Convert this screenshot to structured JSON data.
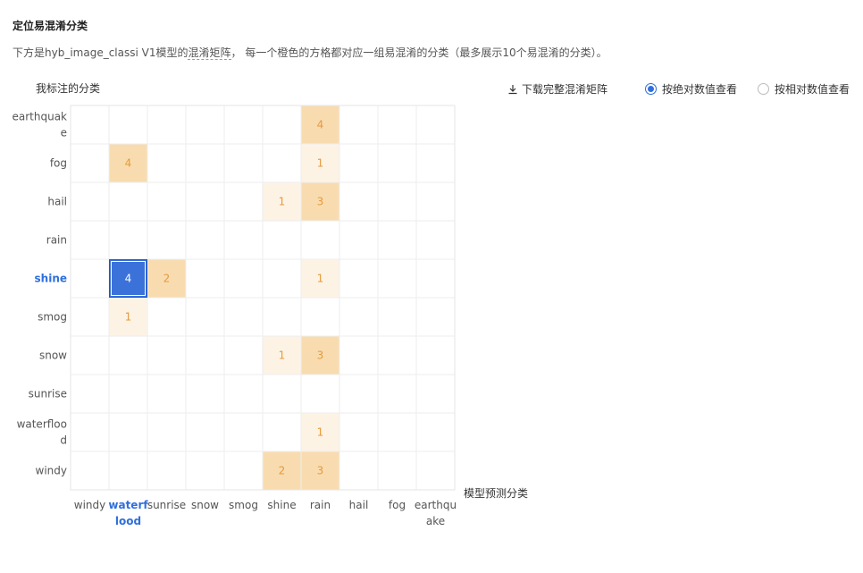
{
  "section": {
    "title": "定位易混淆分类",
    "desc_prefix": "下方是hyb_image_classi V1模型的",
    "desc_link": "混淆矩阵",
    "desc_suffix": "， 每一个橙色的方格都对应一组易混淆的分类（最多展示10个易混淆的分类）。"
  },
  "controls": {
    "download_label": "下载完整混淆矩阵",
    "radio_absolute": "按绝对数值查看",
    "radio_relative": "按相对数值查看",
    "selected": "absolute"
  },
  "colors": {
    "light": "#fdf3e5",
    "medium": "#f8dcb0",
    "selected": "#3b72d9",
    "text_orange": "#e59a3c",
    "highlight_label": "#2f6fde"
  },
  "chart_data": {
    "type": "heatmap",
    "ylabel": "我标注的分类",
    "xlabel": "模型预测分类",
    "y_categories": [
      "earthquake",
      "fog",
      "hail",
      "rain",
      "shine",
      "smog",
      "snow",
      "sunrise",
      "waterflood",
      "windy"
    ],
    "x_categories": [
      "windy",
      "waterflood",
      "sunrise",
      "snow",
      "smog",
      "shine",
      "rain",
      "hail",
      "fog",
      "earthquake"
    ],
    "highlighted_row": "shine",
    "highlighted_col": "waterflood",
    "cells": [
      {
        "row": "earthquake",
        "col": "rain",
        "value": 4
      },
      {
        "row": "fog",
        "col": "waterflood",
        "value": 4
      },
      {
        "row": "fog",
        "col": "rain",
        "value": 1
      },
      {
        "row": "hail",
        "col": "shine",
        "value": 1
      },
      {
        "row": "hail",
        "col": "rain",
        "value": 3
      },
      {
        "row": "shine",
        "col": "waterflood",
        "value": 4,
        "selected": true
      },
      {
        "row": "shine",
        "col": "sunrise",
        "value": 2
      },
      {
        "row": "shine",
        "col": "rain",
        "value": 1
      },
      {
        "row": "smog",
        "col": "waterflood",
        "value": 1
      },
      {
        "row": "snow",
        "col": "shine",
        "value": 1
      },
      {
        "row": "snow",
        "col": "rain",
        "value": 3
      },
      {
        "row": "waterflood",
        "col": "rain",
        "value": 1
      },
      {
        "row": "windy",
        "col": "shine",
        "value": 2
      },
      {
        "row": "windy",
        "col": "rain",
        "value": 3
      }
    ]
  }
}
